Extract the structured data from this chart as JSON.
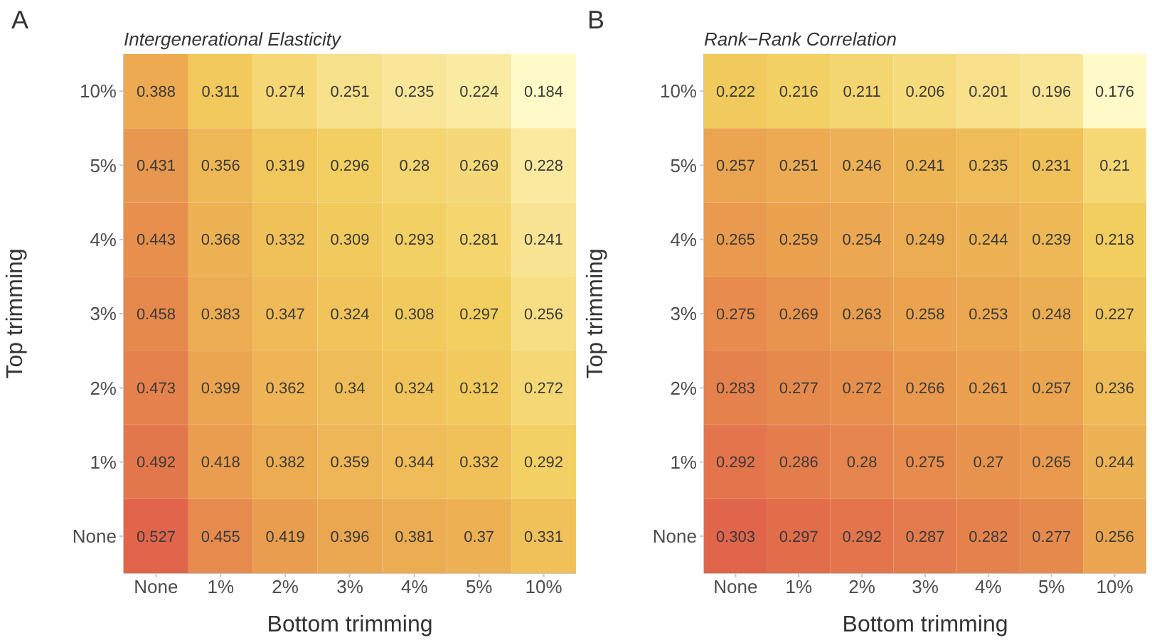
{
  "chart_data": [
    {
      "type": "heatmap",
      "title": "Intergenerational Elasticity",
      "xlabel": "Bottom trimming",
      "ylabel": "Top trimming",
      "annotations": [
        "A"
      ],
      "data_labels": true,
      "categories": [
        "None",
        "1%",
        "2%",
        "3%",
        "4%",
        "5%",
        "10%"
      ],
      "y_categories": [
        "10%",
        "5%",
        "4%",
        "3%",
        "2%",
        "1%",
        "None"
      ],
      "cells": [
        [
          0.388,
          0.311,
          0.274,
          0.251,
          0.235,
          0.224,
          0.184
        ],
        [
          0.431,
          0.356,
          0.319,
          0.296,
          0.28,
          0.269,
          0.228
        ],
        [
          0.443,
          0.368,
          0.332,
          0.309,
          0.293,
          0.281,
          0.241
        ],
        [
          0.458,
          0.383,
          0.347,
          0.324,
          0.308,
          0.297,
          0.256
        ],
        [
          0.473,
          0.399,
          0.362,
          0.34,
          0.324,
          0.312,
          0.272
        ],
        [
          0.492,
          0.418,
          0.382,
          0.359,
          0.344,
          0.332,
          0.292
        ],
        [
          0.527,
          0.455,
          0.419,
          0.396,
          0.381,
          0.37,
          0.331
        ]
      ]
    },
    {
      "type": "heatmap",
      "title": "Rank−Rank Correlation",
      "xlabel": "Bottom trimming",
      "ylabel": "Top trimming",
      "annotations": [
        "B"
      ],
      "data_labels": true,
      "categories": [
        "None",
        "1%",
        "2%",
        "3%",
        "4%",
        "5%",
        "10%"
      ],
      "y_categories": [
        "10%",
        "5%",
        "4%",
        "3%",
        "2%",
        "1%",
        "None"
      ],
      "cells": [
        [
          0.222,
          0.216,
          0.211,
          0.206,
          0.201,
          0.196,
          0.176
        ],
        [
          0.257,
          0.251,
          0.246,
          0.241,
          0.235,
          0.231,
          0.21
        ],
        [
          0.265,
          0.259,
          0.254,
          0.249,
          0.244,
          0.239,
          0.218
        ],
        [
          0.275,
          0.269,
          0.263,
          0.258,
          0.253,
          0.248,
          0.227
        ],
        [
          0.283,
          0.277,
          0.272,
          0.266,
          0.261,
          0.257,
          0.236
        ],
        [
          0.292,
          0.286,
          0.28,
          0.275,
          0.27,
          0.265,
          0.244
        ],
        [
          0.303,
          0.297,
          0.292,
          0.287,
          0.282,
          0.277,
          0.256
        ]
      ]
    }
  ]
}
